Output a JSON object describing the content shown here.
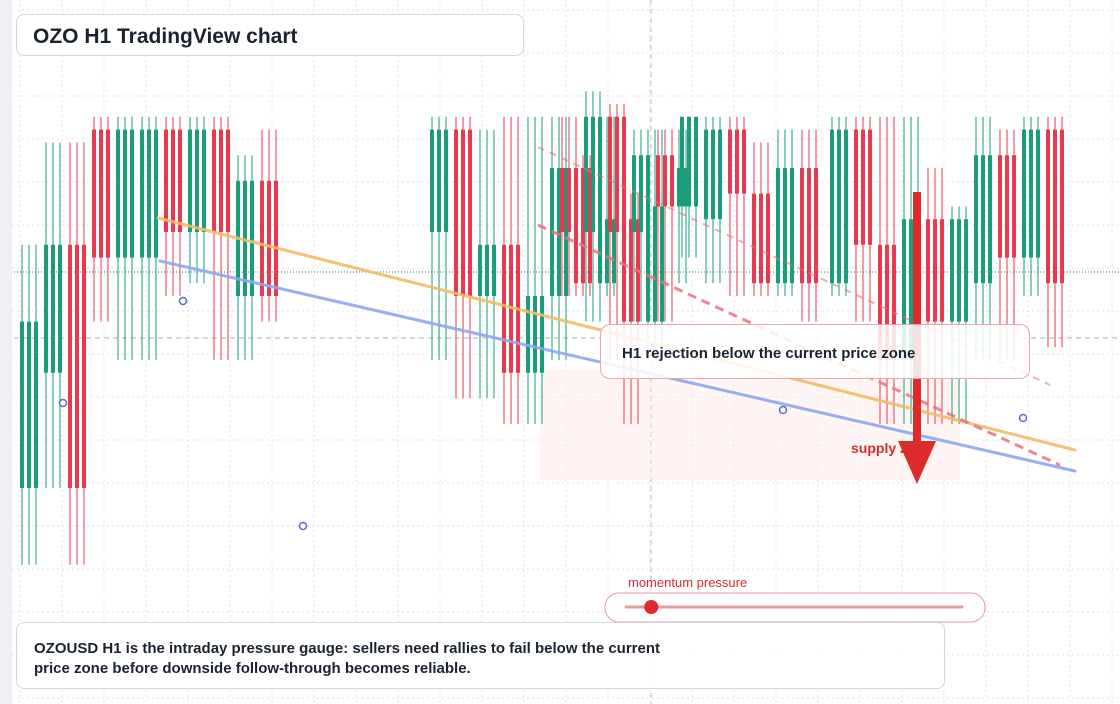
{
  "title": "OZO H1 TradingView chart",
  "callout": "H1 rejection below the current price zone",
  "supply_zone_label": "supply zone",
  "momentum_label": "momentum pressure",
  "momentum_level": 0.13,
  "footer": "OZOUSD H1 is the intraday pressure gauge: sellers need rallies to fail below the current price zone before downside follow-through becomes reliable.",
  "colors": {
    "bull": "#1a9e7a",
    "bear": "#e8394e",
    "resistance_line": "#f4bb66",
    "support_line": "#8ea8ef",
    "bearish_guide": "#e8747c",
    "arrow": "#dd2a2a",
    "grid": "#dfe3ea"
  },
  "chart_data": {
    "type": "candlestick",
    "series_note": "",
    "candles": [
      {
        "o": 0.3,
        "c": 0.56,
        "h": 0.68,
        "l": 0.18
      },
      {
        "o": 0.48,
        "c": 0.68,
        "h": 0.84,
        "l": 0.3
      },
      {
        "o": 0.68,
        "c": 0.3,
        "h": 0.84,
        "l": 0.18
      },
      {
        "o": 0.86,
        "c": 0.66,
        "h": 0.88,
        "l": 0.56
      },
      {
        "o": 0.66,
        "c": 0.86,
        "h": 0.88,
        "l": 0.5
      },
      {
        "o": 0.66,
        "c": 0.86,
        "h": 0.88,
        "l": 0.5
      },
      {
        "o": 0.86,
        "c": 0.7,
        "h": 0.88,
        "l": 0.6
      },
      {
        "o": 0.7,
        "c": 0.86,
        "h": 0.88,
        "l": 0.62
      },
      {
        "o": 0.86,
        "c": 0.7,
        "h": 0.88,
        "l": 0.5
      },
      {
        "o": 0.6,
        "c": 0.78,
        "h": 0.82,
        "l": 0.5
      },
      {
        "o": 0.78,
        "c": 0.6,
        "h": 0.86,
        "l": 0.56
      },
      {
        "o": 0.7,
        "c": 0.86,
        "h": 0.88,
        "l": 0.5
      },
      {
        "o": 0.86,
        "c": 0.6,
        "h": 0.88,
        "l": 0.44
      },
      {
        "o": 0.6,
        "c": 0.68,
        "h": 0.86,
        "l": 0.44
      },
      {
        "o": 0.68,
        "c": 0.48,
        "h": 0.88,
        "l": 0.4
      },
      {
        "o": 0.48,
        "c": 0.6,
        "h": 0.88,
        "l": 0.4
      },
      {
        "o": 0.6,
        "c": 0.8,
        "h": 0.88,
        "l": 0.5
      },
      {
        "o": 0.8,
        "c": 0.62,
        "h": 0.82,
        "l": 0.6
      },
      {
        "o": 0.62,
        "c": 0.72,
        "h": 0.88,
        "l": 0.6
      },
      {
        "o": 0.72,
        "c": 0.56,
        "h": 0.76,
        "l": 0.4
      },
      {
        "o": 0.56,
        "c": 0.74,
        "h": 0.86,
        "l": 0.5
      },
      {
        "o": 0.74,
        "c": 0.8,
        "h": 0.86,
        "l": 0.62
      },
      {
        "o": 0.8,
        "c": 0.7,
        "h": 0.88,
        "l": 0.6
      },
      {
        "o": 0.7,
        "c": 0.88,
        "h": 0.92,
        "l": 0.56
      },
      {
        "o": 0.88,
        "c": 0.7,
        "h": 0.9,
        "l": 0.5
      },
      {
        "o": 0.7,
        "c": 0.82,
        "h": 0.86,
        "l": 0.56
      },
      {
        "o": 0.82,
        "c": 0.74,
        "h": 0.86,
        "l": 0.56
      },
      {
        "o": 0.74,
        "c": 0.88,
        "h": 0.88,
        "l": 0.66
      },
      {
        "o": 0.72,
        "c": 0.86,
        "h": 0.88,
        "l": 0.62
      },
      {
        "o": 0.86,
        "c": 0.76,
        "h": 0.88,
        "l": 0.6
      },
      {
        "o": 0.76,
        "c": 0.62,
        "h": 0.84,
        "l": 0.6
      },
      {
        "o": 0.62,
        "c": 0.8,
        "h": 0.86,
        "l": 0.6
      },
      {
        "o": 0.8,
        "c": 0.62,
        "h": 0.86,
        "l": 0.56
      },
      {
        "o": 0.62,
        "c": 0.86,
        "h": 0.88,
        "l": 0.6
      },
      {
        "o": 0.86,
        "c": 0.68,
        "h": 0.88,
        "l": 0.56
      },
      {
        "o": 0.68,
        "c": 0.5,
        "h": 0.88,
        "l": 0.4
      },
      {
        "o": 0.5,
        "c": 0.72,
        "h": 0.88,
        "l": 0.4
      },
      {
        "o": 0.72,
        "c": 0.56,
        "h": 0.8,
        "l": 0.4
      },
      {
        "o": 0.56,
        "c": 0.72,
        "h": 0.74,
        "l": 0.4
      },
      {
        "o": 0.62,
        "c": 0.82,
        "h": 0.88,
        "l": 0.5
      },
      {
        "o": 0.82,
        "c": 0.66,
        "h": 0.86,
        "l": 0.5
      },
      {
        "o": 0.66,
        "c": 0.86,
        "h": 0.88,
        "l": 0.6
      },
      {
        "o": 0.86,
        "c": 0.62,
        "h": 0.88,
        "l": 0.52
      }
    ]
  }
}
